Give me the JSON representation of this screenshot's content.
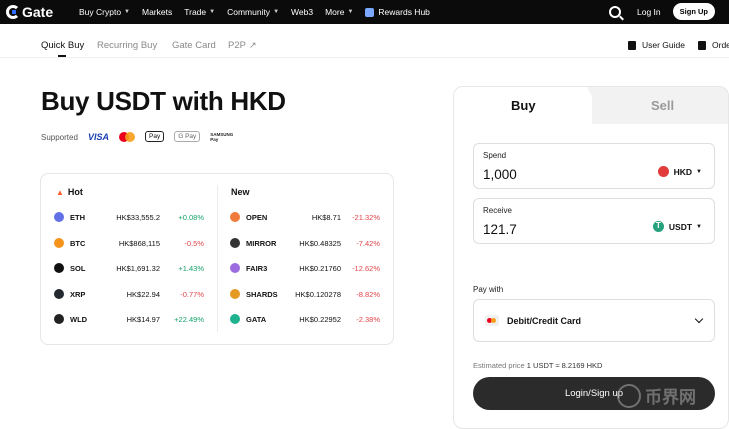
{
  "nav": {
    "logo": "Gate",
    "items": [
      {
        "label": "Buy Crypto",
        "caret": true
      },
      {
        "label": "Markets",
        "caret": false
      },
      {
        "label": "Trade",
        "caret": true
      },
      {
        "label": "Community",
        "caret": true
      },
      {
        "label": "Web3",
        "caret": false
      },
      {
        "label": "More",
        "caret": true
      }
    ],
    "rewards": "Rewards Hub",
    "login": "Log In",
    "signup": "Sign Up"
  },
  "subnav": {
    "tabs": [
      "Quick Buy",
      "Recurring Buy",
      "Gate Card",
      "P2P"
    ],
    "p2p_arrow": "↗",
    "user_guide": "User Guide",
    "orders": "Orde"
  },
  "hero": {
    "title": "Buy USDT with HKD",
    "supported_label": "Supported",
    "payment_methods": {
      "visa": "VISA",
      "apple_pay": "Pay",
      "google_pay": "G Pay",
      "samsung_pay": [
        "SAMSUNG",
        "Pay"
      ]
    }
  },
  "market": {
    "hot_label": "Hot",
    "new_label": "New",
    "hot": [
      {
        "symbol": "ETH",
        "price": "HK$33,555.2",
        "change": "+0.08%",
        "dir": "up",
        "color": "#6270e8"
      },
      {
        "symbol": "BTC",
        "price": "HK$868,115",
        "change": "-0.5%",
        "dir": "down",
        "color": "#f7931a"
      },
      {
        "symbol": "SOL",
        "price": "HK$1,691.32",
        "change": "+1.43%",
        "dir": "up",
        "color": "#111111"
      },
      {
        "symbol": "XRP",
        "price": "HK$22.94",
        "change": "-0.77%",
        "dir": "down",
        "color": "#23292f"
      },
      {
        "symbol": "WLD",
        "price": "HK$14.97",
        "change": "+22.49%",
        "dir": "up",
        "color": "#222222"
      }
    ],
    "new": [
      {
        "symbol": "OPEN",
        "price": "HK$8.71",
        "change": "-21.32%",
        "dir": "down",
        "color": "#f07a3a"
      },
      {
        "symbol": "MIRROR",
        "price": "HK$0.48325",
        "change": "-7.42%",
        "dir": "down",
        "color": "#333333"
      },
      {
        "symbol": "FAIR3",
        "price": "HK$0.21760",
        "change": "-12.62%",
        "dir": "down",
        "color": "#9b6be0"
      },
      {
        "symbol": "SHARDS",
        "price": "HK$0.120278",
        "change": "-8.82%",
        "dir": "down",
        "color": "#e59a22"
      },
      {
        "symbol": "GATA",
        "price": "HK$0.22952",
        "change": "-2.38%",
        "dir": "down",
        "color": "#1fb28f"
      }
    ]
  },
  "trade": {
    "buy_tab": "Buy",
    "sell_tab": "Sell",
    "spend_label": "Spend",
    "spend_value": "1,000",
    "spend_currency": "HKD",
    "receive_label": "Receive",
    "receive_value": "121.7",
    "receive_currency": "USDT",
    "pay_with_label": "Pay with",
    "pay_method": "Debit/Credit Card",
    "estimated_label": "Estimated price",
    "estimated_rate": "1 USDT ≈ 8.2169 HKD",
    "login_button": "Login/Sign up"
  },
  "watermark": "币界网"
}
